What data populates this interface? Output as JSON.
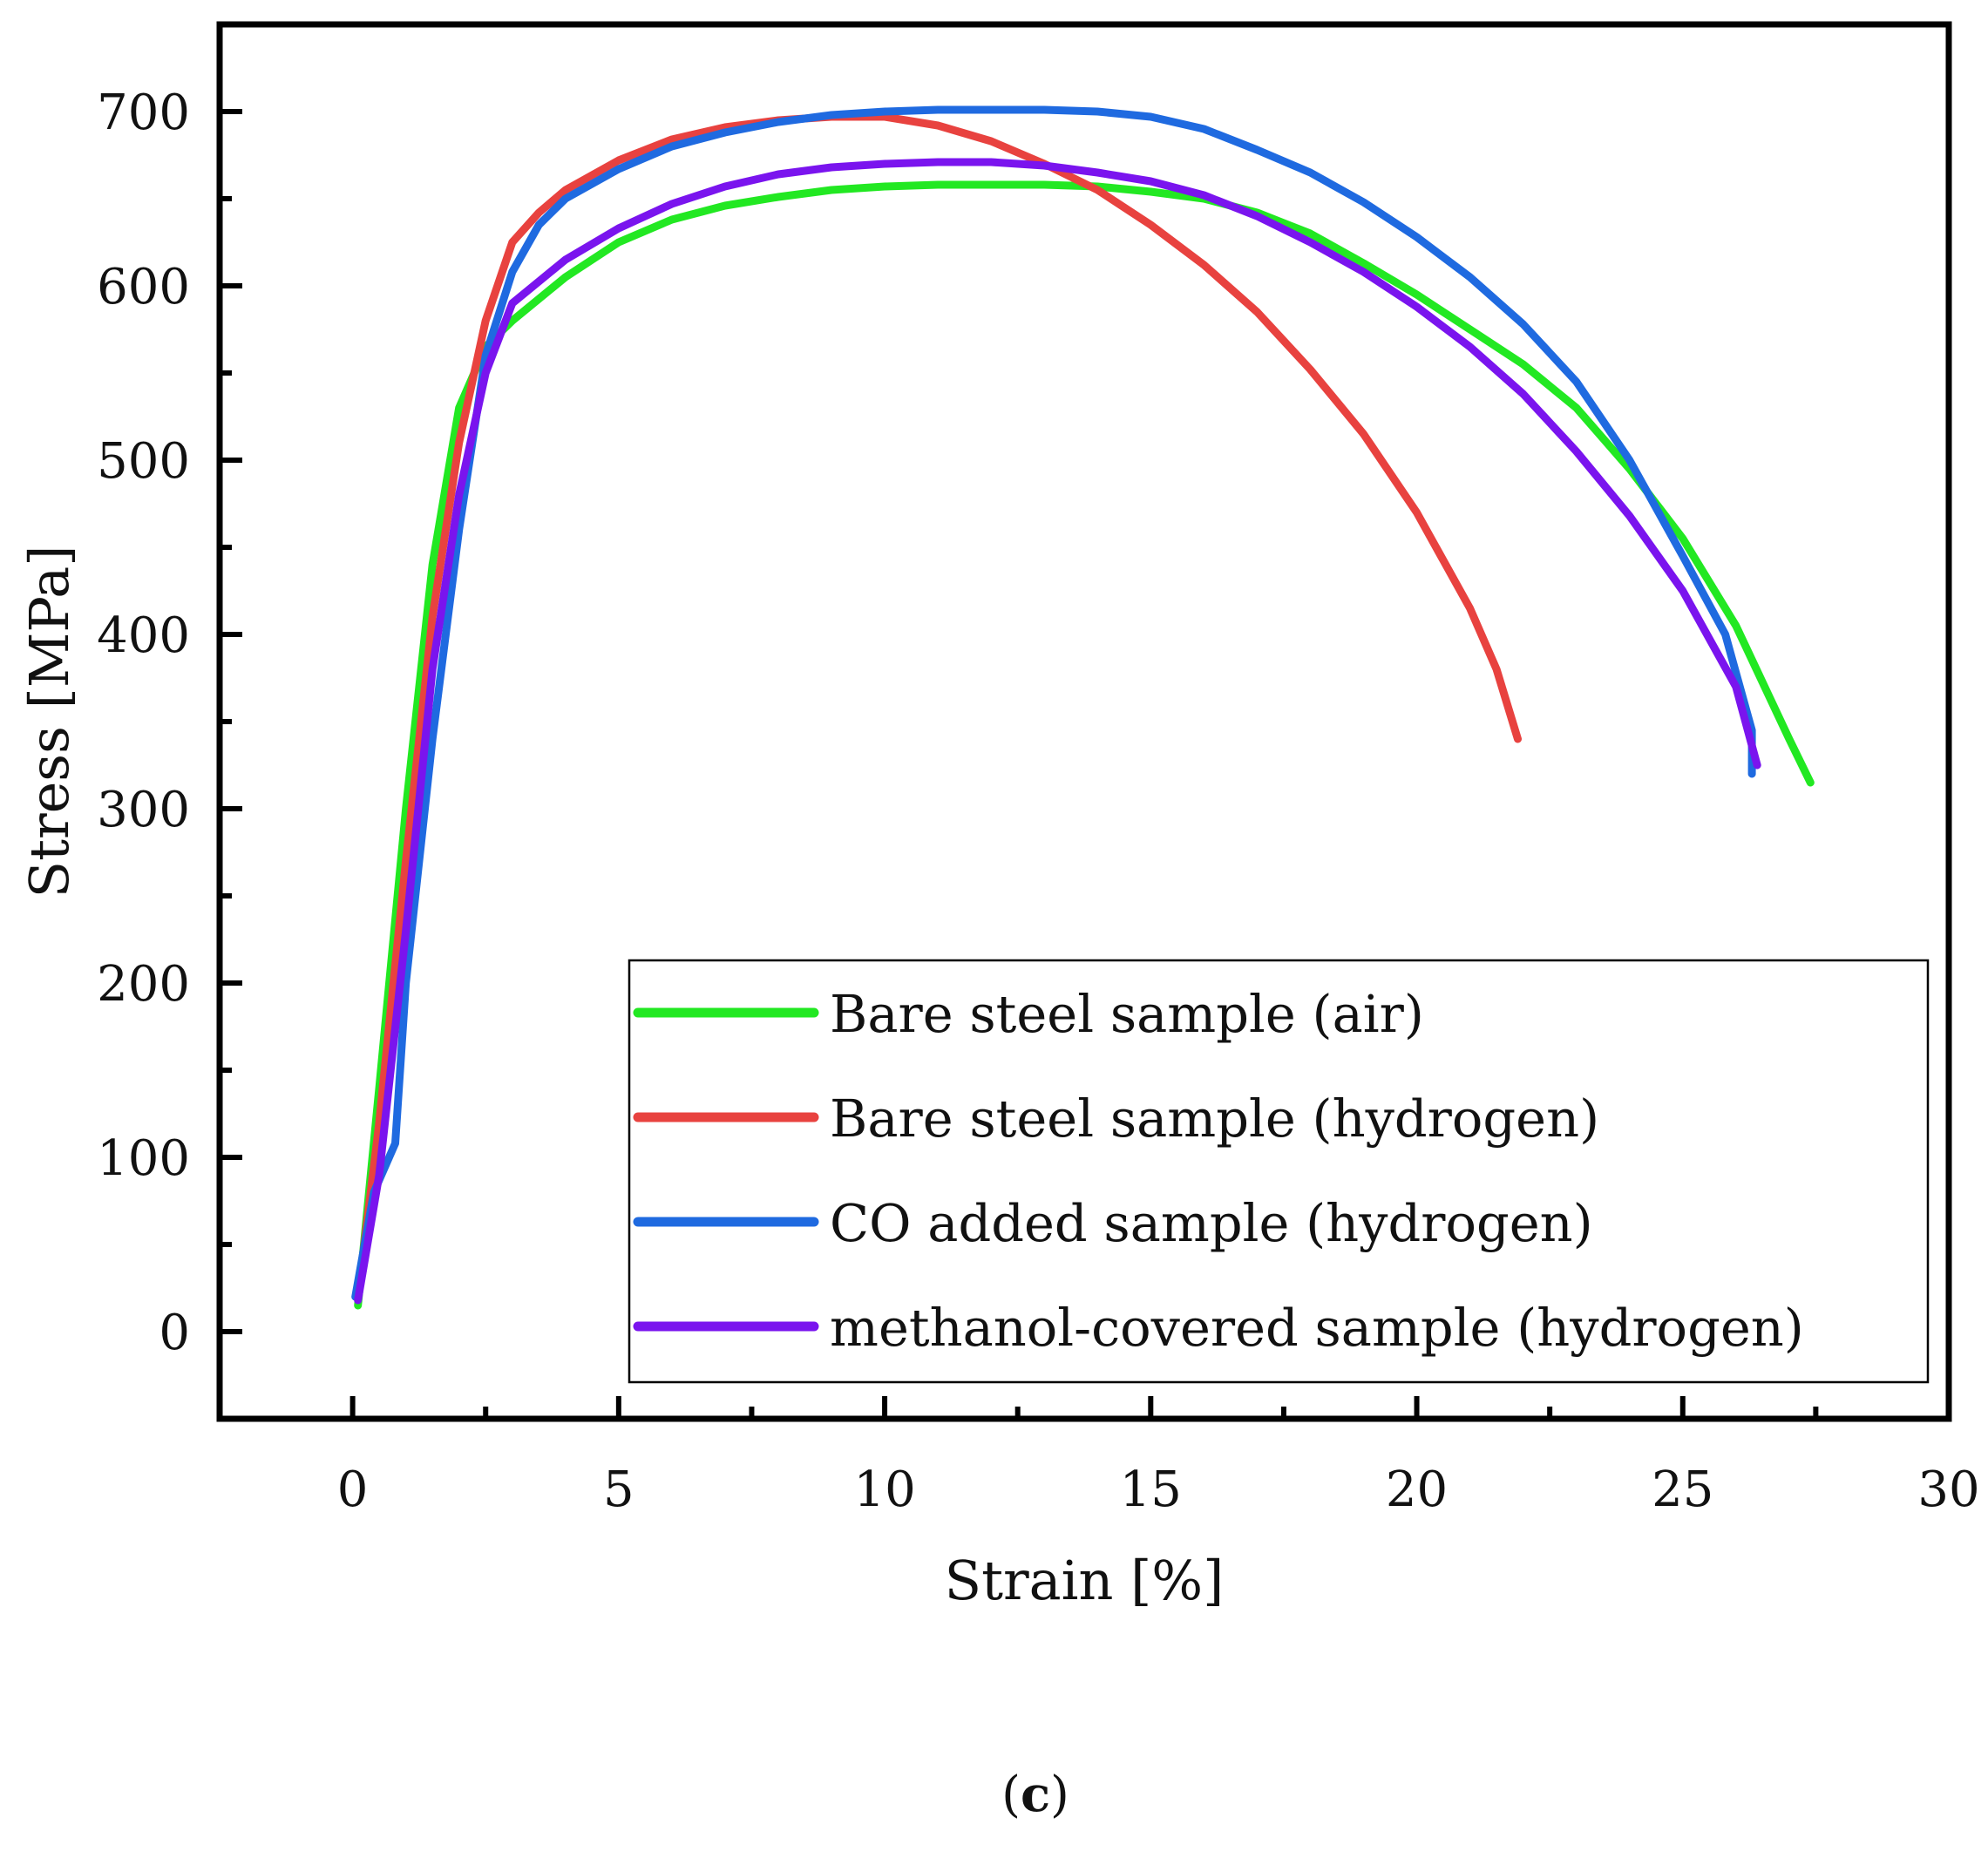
{
  "chart_data": {
    "type": "line",
    "title": "",
    "panel_label": {
      "open": "(",
      "letter": "c",
      "close": ")"
    },
    "xlabel": "Strain [%]",
    "ylabel": "Stress [MPa]",
    "xlim": [
      -2.5,
      30
    ],
    "ylim": [
      -50,
      750
    ],
    "xticks": [
      0,
      5,
      10,
      15,
      20,
      25,
      30
    ],
    "yticks": [
      0,
      100,
      200,
      300,
      400,
      500,
      600,
      700
    ],
    "grid": false,
    "legend_position": "bottom-right",
    "series": [
      {
        "name": "Bare steel sample (air)",
        "color": "#22e822",
        "points": [
          [
            0.1,
            15
          ],
          [
            0.5,
            140
          ],
          [
            1.0,
            300
          ],
          [
            1.5,
            440
          ],
          [
            2.0,
            530
          ],
          [
            2.5,
            565
          ],
          [
            3.0,
            580
          ],
          [
            4.0,
            605
          ],
          [
            5.0,
            625
          ],
          [
            6.0,
            638
          ],
          [
            7.0,
            646
          ],
          [
            8.0,
            651
          ],
          [
            9.0,
            655
          ],
          [
            10.0,
            657
          ],
          [
            11.0,
            658
          ],
          [
            12.0,
            658
          ],
          [
            13.0,
            658
          ],
          [
            14.0,
            657
          ],
          [
            15.0,
            654
          ],
          [
            16.0,
            650
          ],
          [
            17.0,
            642
          ],
          [
            18.0,
            630
          ],
          [
            19.0,
            613
          ],
          [
            20.0,
            595
          ],
          [
            21.0,
            575
          ],
          [
            22.0,
            555
          ],
          [
            23.0,
            530
          ],
          [
            24.0,
            495
          ],
          [
            25.0,
            455
          ],
          [
            26.0,
            405
          ],
          [
            27.0,
            340
          ],
          [
            27.4,
            315
          ]
        ]
      },
      {
        "name": "Bare steel sample (hydrogen)",
        "color": "#e8423f",
        "points": [
          [
            0.1,
            20
          ],
          [
            0.5,
            120
          ],
          [
            1.0,
            270
          ],
          [
            1.5,
            410
          ],
          [
            2.0,
            510
          ],
          [
            2.5,
            580
          ],
          [
            3.0,
            625
          ],
          [
            3.5,
            642
          ],
          [
            4.0,
            655
          ],
          [
            5.0,
            672
          ],
          [
            6.0,
            684
          ],
          [
            7.0,
            691
          ],
          [
            8.0,
            695
          ],
          [
            9.0,
            697
          ],
          [
            10.0,
            697
          ],
          [
            11.0,
            692
          ],
          [
            12.0,
            683
          ],
          [
            13.0,
            670
          ],
          [
            14.0,
            655
          ],
          [
            15.0,
            635
          ],
          [
            16.0,
            612
          ],
          [
            17.0,
            585
          ],
          [
            18.0,
            552
          ],
          [
            19.0,
            515
          ],
          [
            20.0,
            470
          ],
          [
            21.0,
            415
          ],
          [
            21.5,
            380
          ],
          [
            21.9,
            340
          ]
        ]
      },
      {
        "name": "CO added sample (hydrogen)",
        "color": "#1f6ae0",
        "points": [
          [
            0.05,
            20
          ],
          [
            0.4,
            80
          ],
          [
            0.8,
            108
          ],
          [
            1.0,
            200
          ],
          [
            1.5,
            340
          ],
          [
            2.0,
            460
          ],
          [
            2.5,
            560
          ],
          [
            3.0,
            608
          ],
          [
            3.5,
            635
          ],
          [
            4.0,
            650
          ],
          [
            5.0,
            667
          ],
          [
            6.0,
            680
          ],
          [
            7.0,
            688
          ],
          [
            8.0,
            694
          ],
          [
            9.0,
            698
          ],
          [
            10.0,
            700
          ],
          [
            11.0,
            701
          ],
          [
            12.0,
            701
          ],
          [
            13.0,
            701
          ],
          [
            14.0,
            700
          ],
          [
            15.0,
            697
          ],
          [
            16.0,
            690
          ],
          [
            17.0,
            678
          ],
          [
            18.0,
            665
          ],
          [
            19.0,
            648
          ],
          [
            20.0,
            628
          ],
          [
            21.0,
            605
          ],
          [
            22.0,
            578
          ],
          [
            23.0,
            545
          ],
          [
            24.0,
            500
          ],
          [
            25.0,
            445
          ],
          [
            25.8,
            400
          ],
          [
            26.3,
            345
          ],
          [
            26.3,
            320
          ]
        ]
      },
      {
        "name": "methanol-covered sample (hydrogen)",
        "color": "#7a14ee",
        "points": [
          [
            0.1,
            18
          ],
          [
            0.5,
            90
          ],
          [
            1.0,
            230
          ],
          [
            1.5,
            380
          ],
          [
            2.0,
            480
          ],
          [
            2.5,
            550
          ],
          [
            3.0,
            590
          ],
          [
            4.0,
            615
          ],
          [
            5.0,
            633
          ],
          [
            6.0,
            647
          ],
          [
            7.0,
            657
          ],
          [
            8.0,
            664
          ],
          [
            9.0,
            668
          ],
          [
            10.0,
            670
          ],
          [
            11.0,
            671
          ],
          [
            12.0,
            671
          ],
          [
            13.0,
            669
          ],
          [
            14.0,
            665
          ],
          [
            15.0,
            660
          ],
          [
            16.0,
            652
          ],
          [
            17.0,
            640
          ],
          [
            18.0,
            625
          ],
          [
            19.0,
            608
          ],
          [
            20.0,
            588
          ],
          [
            21.0,
            565
          ],
          [
            22.0,
            538
          ],
          [
            23.0,
            505
          ],
          [
            24.0,
            468
          ],
          [
            25.0,
            425
          ],
          [
            26.0,
            370
          ],
          [
            26.4,
            325
          ]
        ]
      }
    ]
  }
}
